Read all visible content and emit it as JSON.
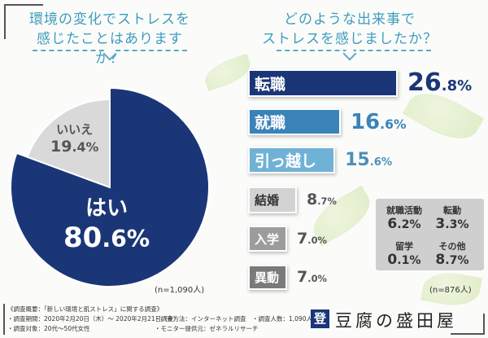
{
  "left": {
    "question_line1": "環境の変化でストレスを",
    "question_line2": "感じたことはありますか？",
    "sample": "(n=1,090人)"
  },
  "right": {
    "question_line1": "どのような出来事で",
    "question_line2": "ストレスを感じましたか？",
    "sample": "(n=876人)"
  },
  "chart_data": [
    {
      "type": "pie",
      "slices": [
        {
          "label": "はい",
          "value": 80.6,
          "color": "#1b3677"
        },
        {
          "label": "いいえ",
          "value": 19.4,
          "color": "#d9d9d9"
        }
      ]
    },
    {
      "type": "bar",
      "orientation": "horizontal",
      "categories": [
        "転職",
        "就職",
        "引っ越し",
        "結婚",
        "入学",
        "異動"
      ],
      "values": [
        26.8,
        16.6,
        15.6,
        8.7,
        7.0,
        7.0
      ],
      "colors": [
        "#1b3677",
        "#3a83b9",
        "#70b2d5",
        "#d2d2d2",
        "#9c9c9c",
        "#7a7a7a"
      ],
      "others": [
        {
          "label": "就職活動",
          "value": 6.2
        },
        {
          "label": "転勤",
          "value": 3.3
        },
        {
          "label": "留学",
          "value": 0.1
        },
        {
          "label": "その他",
          "value": 8.7
        }
      ]
    }
  ],
  "footer": {
    "title": "《調査概要：「新しい環境と肌ストレス」に関する調査》",
    "period": "・調査期間：2020年2月20日（木）～ 2020年2月21日（金）",
    "target": "・調査対象：20代～50代女性",
    "method": "・調査方法：インターネット調査",
    "monitor": "・モニター提供元：ゼネラルリサーチ",
    "count": "・調査人数：1,090人",
    "brand": "豆腐の盛田屋",
    "brand_mark": "登"
  }
}
